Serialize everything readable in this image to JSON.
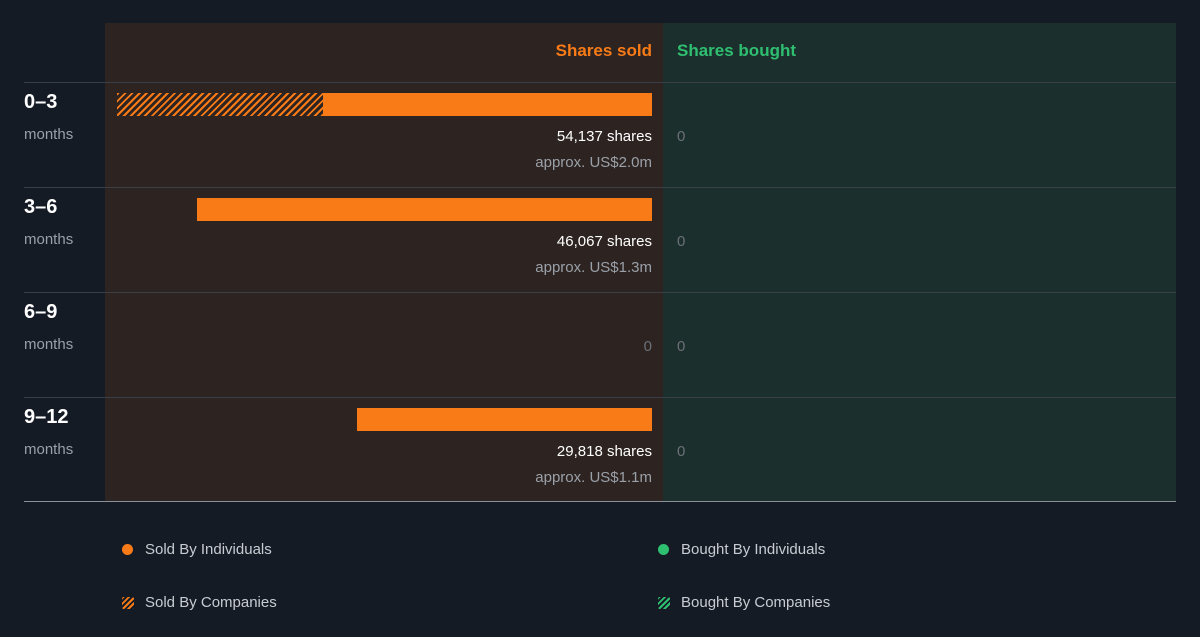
{
  "colors": {
    "sold": "#f97b17",
    "bought": "#2fbf71",
    "sold_panel": "#2d2421",
    "bought_panel": "#1b2f2d"
  },
  "headers": {
    "sold": "Shares sold",
    "bought": "Shares bought"
  },
  "legend": [
    {
      "label": "Sold By Individuals",
      "style": "dot",
      "color": "#f97b17"
    },
    {
      "label": "Bought By Individuals",
      "style": "dot",
      "color": "#2fbf71"
    },
    {
      "label": "Sold By Companies",
      "style": "hatch",
      "color": "#f97b17"
    },
    {
      "label": "Bought By Companies",
      "style": "hatch",
      "color": "#2fbf71"
    }
  ],
  "chart_data": {
    "type": "bar",
    "orientation": "horizontal",
    "categories": [
      "0–3 months",
      "3–6 months",
      "6–9 months",
      "9–12 months"
    ],
    "periods": [
      {
        "main": "0–3",
        "sub": "months",
        "sold_shares": 54137,
        "sold_individuals": 33320,
        "sold_companies": 20817,
        "sold_label": "54,137 shares",
        "sold_value": "approx. US$2.0m",
        "bought_label": "0"
      },
      {
        "main": "3–6",
        "sub": "months",
        "sold_shares": 46067,
        "sold_individuals": 46067,
        "sold_companies": 0,
        "sold_label": "46,067 shares",
        "sold_value": "approx. US$1.3m",
        "bought_label": "0"
      },
      {
        "main": "6–9",
        "sub": "months",
        "sold_shares": 0,
        "sold_individuals": 0,
        "sold_companies": 0,
        "sold_label": "0",
        "sold_value": "",
        "bought_label": "0"
      },
      {
        "main": "9–12",
        "sub": "months",
        "sold_shares": 29818,
        "sold_individuals": 29818,
        "sold_companies": 0,
        "sold_label": "29,818 shares",
        "sold_value": "approx. US$1.1m",
        "bought_label": "0"
      }
    ],
    "series": [
      {
        "name": "Sold By Individuals",
        "values": [
          33320,
          46067,
          0,
          29818
        ]
      },
      {
        "name": "Sold By Companies",
        "values": [
          20817,
          0,
          0,
          0
        ]
      },
      {
        "name": "Bought By Individuals",
        "values": [
          0,
          0,
          0,
          0
        ]
      },
      {
        "name": "Bought By Companies",
        "values": [
          0,
          0,
          0,
          0
        ]
      }
    ],
    "xmax": 54137
  }
}
